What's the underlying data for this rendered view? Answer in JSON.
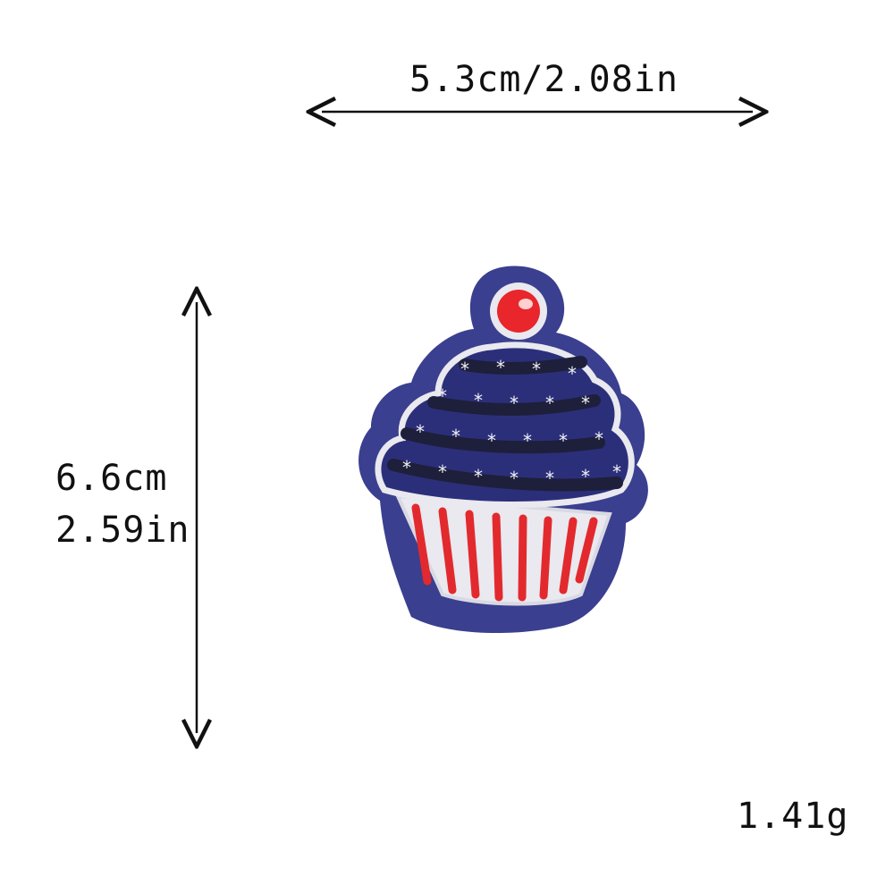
{
  "dimensions": {
    "width_label": "5.3cm/2.08in",
    "height_cm_label": "6.6cm",
    "height_in_label": "2.59in",
    "weight_label": "1.41g"
  },
  "product": {
    "depicts": "cupcake embroidered patch",
    "colors": {
      "felt_border": "#3a3f8f",
      "frosting": "#2b2f7a",
      "frosting_swirl": "#1e1f3a",
      "cherry": "#e8262b",
      "liner_white": "#e9e9ef",
      "liner_stripe": "#e22a2e",
      "stitch_white": "#f2f2f5"
    }
  }
}
